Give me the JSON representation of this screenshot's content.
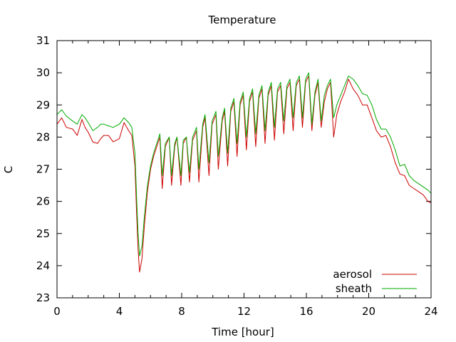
{
  "chart_data": {
    "type": "line",
    "title": "Temperature",
    "xlabel": "Time [hour]",
    "ylabel": "C",
    "xlim": [
      0,
      24
    ],
    "ylim": [
      23,
      31
    ],
    "xticks": [
      0,
      4,
      8,
      12,
      16,
      20,
      24
    ],
    "yticks": [
      23,
      24,
      25,
      26,
      27,
      28,
      29,
      30,
      31
    ],
    "grid": false,
    "legend_position": "bottom-right",
    "series": [
      {
        "name": "aerosol",
        "color": "#cc0000",
        "x": [
          0,
          0.3,
          0.6,
          1.0,
          1.3,
          1.6,
          1.8,
          2.0,
          2.3,
          2.6,
          2.8,
          3.0,
          3.3,
          3.6,
          3.8,
          4.0,
          4.3,
          4.6,
          4.8,
          5.0,
          5.1,
          5.2,
          5.3,
          5.45,
          5.6,
          5.8,
          6.0,
          6.2,
          6.4,
          6.6,
          6.75,
          6.95,
          7.2,
          7.35,
          7.55,
          7.7,
          7.95,
          8.1,
          8.3,
          8.5,
          8.7,
          8.95,
          9.1,
          9.35,
          9.5,
          9.75,
          9.95,
          10.2,
          10.35,
          10.6,
          10.75,
          10.95,
          11.15,
          11.35,
          11.55,
          11.75,
          11.95,
          12.15,
          12.35,
          12.55,
          12.75,
          12.95,
          13.15,
          13.35,
          13.55,
          13.75,
          13.95,
          14.15,
          14.35,
          14.55,
          14.75,
          14.95,
          15.15,
          15.35,
          15.55,
          15.75,
          15.95,
          16.15,
          16.35,
          16.55,
          16.75,
          16.95,
          17.15,
          17.35,
          17.55,
          17.75,
          17.95,
          18.2,
          18.45,
          18.7,
          19.0,
          19.3,
          19.6,
          19.9,
          20.2,
          20.5,
          20.8,
          21.1,
          21.4,
          21.7,
          22.0,
          22.3,
          22.6,
          22.9,
          23.2,
          23.5,
          23.8,
          24.0
        ],
        "values": [
          28.4,
          28.6,
          28.3,
          28.25,
          28.05,
          28.55,
          28.3,
          28.15,
          27.85,
          27.8,
          27.95,
          28.05,
          28.05,
          27.85,
          27.9,
          27.95,
          28.45,
          28.2,
          28.05,
          27.1,
          25.7,
          24.5,
          23.8,
          24.2,
          25.2,
          26.3,
          27.0,
          27.4,
          27.7,
          28.0,
          26.4,
          27.7,
          28.0,
          26.5,
          27.7,
          28.0,
          26.5,
          27.8,
          28.0,
          26.6,
          27.9,
          28.2,
          26.6,
          28.3,
          28.6,
          26.8,
          28.4,
          28.7,
          27.0,
          28.5,
          28.8,
          27.1,
          28.8,
          29.1,
          27.4,
          29.0,
          29.3,
          27.6,
          29.1,
          29.4,
          27.7,
          29.2,
          29.5,
          27.8,
          29.3,
          29.6,
          27.9,
          29.4,
          29.6,
          28.1,
          29.5,
          29.7,
          28.2,
          29.6,
          29.8,
          28.3,
          29.7,
          29.9,
          28.2,
          29.3,
          29.7,
          28.3,
          29.1,
          29.5,
          29.7,
          28.0,
          28.7,
          29.1,
          29.4,
          29.8,
          29.5,
          29.3,
          29.0,
          29.0,
          28.6,
          28.2,
          28.0,
          28.05,
          27.7,
          27.2,
          26.85,
          26.8,
          26.5,
          26.4,
          26.3,
          26.2,
          26.0,
          25.95
        ]
      },
      {
        "name": "sheath",
        "color": "#00aa00",
        "x": [
          0,
          0.3,
          0.6,
          1.0,
          1.3,
          1.6,
          1.8,
          2.0,
          2.3,
          2.6,
          2.8,
          3.0,
          3.3,
          3.6,
          3.8,
          4.0,
          4.3,
          4.6,
          4.8,
          5.0,
          5.1,
          5.2,
          5.3,
          5.45,
          5.6,
          5.8,
          6.0,
          6.2,
          6.4,
          6.6,
          6.75,
          6.95,
          7.2,
          7.35,
          7.55,
          7.7,
          7.95,
          8.1,
          8.3,
          8.5,
          8.7,
          8.95,
          9.1,
          9.35,
          9.5,
          9.75,
          9.95,
          10.2,
          10.35,
          10.6,
          10.75,
          10.95,
          11.15,
          11.35,
          11.55,
          11.75,
          11.95,
          12.15,
          12.35,
          12.55,
          12.75,
          12.95,
          13.15,
          13.35,
          13.55,
          13.75,
          13.95,
          14.15,
          14.35,
          14.55,
          14.75,
          14.95,
          15.15,
          15.35,
          15.55,
          15.75,
          15.95,
          16.15,
          16.35,
          16.55,
          16.75,
          16.95,
          17.15,
          17.35,
          17.55,
          17.75,
          17.95,
          18.2,
          18.45,
          18.7,
          19.0,
          19.3,
          19.6,
          19.9,
          20.2,
          20.5,
          20.8,
          21.1,
          21.4,
          21.7,
          22.0,
          22.3,
          22.6,
          22.9,
          23.2,
          23.5,
          23.8,
          24.0
        ],
        "values": [
          28.7,
          28.85,
          28.65,
          28.5,
          28.4,
          28.7,
          28.6,
          28.45,
          28.2,
          28.3,
          28.4,
          28.4,
          28.35,
          28.3,
          28.35,
          28.4,
          28.6,
          28.45,
          28.3,
          27.5,
          26.2,
          25.0,
          24.3,
          24.6,
          25.5,
          26.5,
          27.1,
          27.5,
          27.8,
          28.1,
          26.8,
          27.8,
          28.0,
          26.8,
          27.8,
          28.0,
          26.8,
          27.9,
          28.0,
          26.9,
          28.0,
          28.3,
          27.0,
          28.4,
          28.7,
          27.2,
          28.5,
          28.8,
          27.4,
          28.6,
          28.9,
          27.5,
          28.9,
          29.2,
          27.8,
          29.1,
          29.4,
          28.0,
          29.2,
          29.5,
          28.1,
          29.3,
          29.6,
          28.2,
          29.4,
          29.7,
          28.3,
          29.5,
          29.7,
          28.5,
          29.6,
          29.8,
          28.6,
          29.7,
          29.9,
          28.6,
          29.8,
          30.0,
          28.4,
          29.4,
          29.8,
          28.5,
          29.3,
          29.6,
          29.8,
          28.6,
          29.0,
          29.3,
          29.6,
          29.9,
          29.8,
          29.6,
          29.35,
          29.3,
          29.0,
          28.55,
          28.25,
          28.25,
          28.0,
          27.6,
          27.1,
          27.15,
          26.8,
          26.65,
          26.55,
          26.45,
          26.35,
          26.25
        ]
      }
    ]
  }
}
